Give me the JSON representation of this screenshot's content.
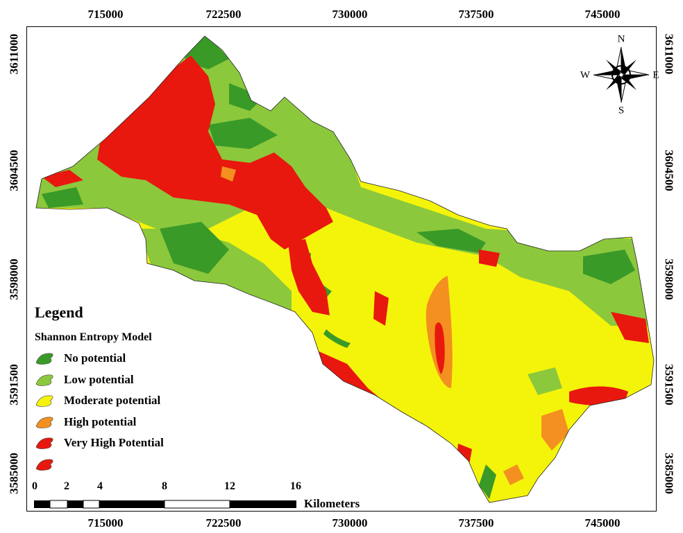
{
  "axes": {
    "x_ticks": [
      "715000",
      "722500",
      "730000",
      "737500",
      "745000"
    ],
    "y_ticks": [
      "3611000",
      "3604500",
      "3598000",
      "3591500",
      "3585000"
    ]
  },
  "legend": {
    "title": "Legend",
    "subtitle": "Shannon Entropy Model",
    "items": [
      {
        "label": "No potential",
        "color": "#3a9a28"
      },
      {
        "label": "Low potential",
        "color": "#8cc83c"
      },
      {
        "label": "Moderate potential",
        "color": "#f4f40a"
      },
      {
        "label": "High potential",
        "color": "#f39020"
      },
      {
        "label": "Very High Potential",
        "color": "#e8180e"
      },
      {
        "label": "",
        "color": "#e8180e"
      }
    ]
  },
  "scale_bar": {
    "labels": [
      "0",
      "2",
      "4",
      "8",
      "12",
      "16"
    ],
    "unit": "Kilometers"
  },
  "north_arrow": {
    "icon": "compass-rose-icon",
    "letters": {
      "n": "N",
      "s": "S",
      "e": "E",
      "w": "W"
    }
  },
  "colors": {
    "no_potential": "#3a9a28",
    "low_potential": "#8cc83c",
    "moderate_potential": "#f4f40a",
    "high_potential": "#f39020",
    "very_high_potential": "#e8180e"
  }
}
